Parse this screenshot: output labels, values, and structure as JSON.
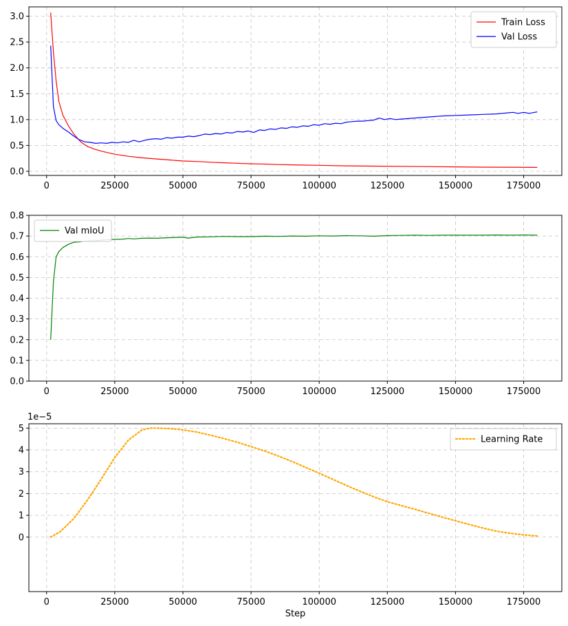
{
  "chart_data": [
    {
      "type": "line",
      "xlim": [
        -6500,
        189000
      ],
      "ylim": [
        -0.08,
        3.18
      ],
      "x_ticks": [
        0,
        25000,
        50000,
        75000,
        100000,
        125000,
        150000,
        175000
      ],
      "x_tick_labels": [
        "0",
        "25000",
        "50000",
        "75000",
        "100000",
        "125000",
        "150000",
        "175000"
      ],
      "y_ticks": [
        0.0,
        0.5,
        1.0,
        1.5,
        2.0,
        2.5,
        3.0
      ],
      "y_tick_labels": [
        "0.0",
        "0.5",
        "1.0",
        "1.5",
        "2.0",
        "2.5",
        "3.0"
      ],
      "grid": true,
      "legend_position": "top-right",
      "series": [
        {
          "name": "Train Loss",
          "color": "#ff0000",
          "style": "solid",
          "x": [
            1500,
            2500,
            3500,
            4500,
            6000,
            8000,
            10000,
            12500,
            15000,
            17500,
            20000,
            25000,
            30000,
            35000,
            40000,
            45000,
            50000,
            55000,
            60000,
            65000,
            70000,
            75000,
            80000,
            85000,
            90000,
            95000,
            100000,
            110000,
            120000,
            130000,
            140000,
            150000,
            160000,
            170000,
            180000
          ],
          "y": [
            3.07,
            2.3,
            1.75,
            1.35,
            1.08,
            0.88,
            0.72,
            0.57,
            0.48,
            0.43,
            0.39,
            0.33,
            0.29,
            0.26,
            0.24,
            0.22,
            0.2,
            0.19,
            0.175,
            0.165,
            0.155,
            0.145,
            0.14,
            0.13,
            0.125,
            0.12,
            0.115,
            0.105,
            0.1,
            0.095,
            0.09,
            0.085,
            0.08,
            0.078,
            0.075
          ]
        },
        {
          "name": "Val Loss",
          "color": "#0000ff",
          "style": "solid",
          "x": [
            1500,
            2500,
            3500,
            4500,
            6000,
            8000,
            10000,
            12000,
            14000,
            16000,
            18000,
            20000,
            22000,
            24000,
            26000,
            28000,
            30000,
            32000,
            34000,
            36000,
            38000,
            40000,
            42000,
            44000,
            46000,
            48000,
            50000,
            52000,
            54000,
            56000,
            58000,
            60000,
            62000,
            64000,
            66000,
            68000,
            70000,
            72000,
            74000,
            76000,
            78000,
            80000,
            82000,
            84000,
            86000,
            88000,
            90000,
            92000,
            94000,
            96000,
            98000,
            100000,
            102000,
            104000,
            106000,
            108000,
            110000,
            112000,
            114000,
            116000,
            118000,
            120000,
            122000,
            124000,
            126000,
            128000,
            130000,
            135000,
            140000,
            145000,
            150000,
            155000,
            160000,
            165000,
            167000,
            169000,
            171000,
            173000,
            175000,
            177000,
            179000,
            180000
          ],
          "y": [
            2.43,
            1.25,
            0.98,
            0.9,
            0.83,
            0.76,
            0.68,
            0.61,
            0.57,
            0.56,
            0.54,
            0.55,
            0.54,
            0.56,
            0.55,
            0.57,
            0.56,
            0.6,
            0.57,
            0.6,
            0.62,
            0.63,
            0.62,
            0.65,
            0.64,
            0.66,
            0.66,
            0.68,
            0.67,
            0.69,
            0.72,
            0.71,
            0.73,
            0.72,
            0.75,
            0.74,
            0.77,
            0.76,
            0.78,
            0.75,
            0.8,
            0.79,
            0.82,
            0.81,
            0.84,
            0.83,
            0.86,
            0.85,
            0.88,
            0.87,
            0.9,
            0.89,
            0.92,
            0.91,
            0.93,
            0.92,
            0.95,
            0.96,
            0.97,
            0.97,
            0.98,
            0.99,
            1.03,
            1.0,
            1.02,
            1.0,
            1.01,
            1.03,
            1.05,
            1.07,
            1.08,
            1.09,
            1.1,
            1.11,
            1.12,
            1.13,
            1.14,
            1.12,
            1.14,
            1.12,
            1.14,
            1.15
          ]
        }
      ]
    },
    {
      "type": "line",
      "xlim": [
        -6500,
        189000
      ],
      "ylim": [
        0.0,
        0.8
      ],
      "x_ticks": [
        0,
        25000,
        50000,
        75000,
        100000,
        125000,
        150000,
        175000
      ],
      "x_tick_labels": [
        "0",
        "25000",
        "50000",
        "75000",
        "100000",
        "125000",
        "150000",
        "175000"
      ],
      "y_ticks": [
        0.0,
        0.1,
        0.2,
        0.3,
        0.4,
        0.5,
        0.6,
        0.7,
        0.8
      ],
      "y_tick_labels": [
        "0.0",
        "0.1",
        "0.2",
        "0.3",
        "0.4",
        "0.5",
        "0.6",
        "0.7",
        "0.8"
      ],
      "grid": true,
      "legend_position": "top-left",
      "series": [
        {
          "name": "Val mIoU",
          "color": "#008000",
          "style": "solid",
          "x": [
            1500,
            2500,
            3500,
            4500,
            6000,
            8000,
            10000,
            12000,
            14000,
            16000,
            18000,
            20000,
            22000,
            25000,
            28000,
            30000,
            32000,
            35000,
            38000,
            40000,
            45000,
            50000,
            52000,
            55000,
            60000,
            65000,
            70000,
            75000,
            80000,
            85000,
            90000,
            95000,
            100000,
            105000,
            110000,
            115000,
            120000,
            125000,
            130000,
            135000,
            140000,
            145000,
            150000,
            155000,
            160000,
            165000,
            170000,
            175000,
            180000
          ],
          "y": [
            0.2,
            0.48,
            0.6,
            0.625,
            0.645,
            0.66,
            0.67,
            0.672,
            0.675,
            0.677,
            0.678,
            0.68,
            0.682,
            0.684,
            0.685,
            0.688,
            0.686,
            0.689,
            0.69,
            0.689,
            0.692,
            0.694,
            0.69,
            0.695,
            0.696,
            0.698,
            0.697,
            0.697,
            0.699,
            0.698,
            0.7,
            0.699,
            0.701,
            0.7,
            0.702,
            0.701,
            0.699,
            0.702,
            0.703,
            0.704,
            0.703,
            0.704,
            0.704,
            0.704,
            0.704,
            0.705,
            0.704,
            0.705,
            0.704
          ]
        }
      ]
    },
    {
      "type": "line",
      "xlim": [
        -6500,
        189000
      ],
      "ylim": [
        -2.5e-05,
        5.2e-05
      ],
      "x_ticks": [
        0,
        25000,
        50000,
        75000,
        100000,
        125000,
        150000,
        175000
      ],
      "x_tick_labels": [
        "0",
        "25000",
        "50000",
        "75000",
        "100000",
        "125000",
        "150000",
        "175000"
      ],
      "y_ticks": [
        0,
        1e-05,
        2e-05,
        3e-05,
        4e-05,
        5e-05
      ],
      "y_tick_labels": [
        "0",
        "1",
        "2",
        "3",
        "4",
        "5"
      ],
      "y_offset_text": "1e−5",
      "xlabel": "Step",
      "grid": true,
      "legend_position": "top-right",
      "series": [
        {
          "name": "Learning Rate",
          "color": "#ffa500",
          "style": "dotted",
          "x": [
            1500,
            5000,
            10000,
            15000,
            20000,
            25000,
            30000,
            35000,
            38000,
            40000,
            45000,
            50000,
            55000,
            60000,
            65000,
            70000,
            75000,
            80000,
            85000,
            90000,
            95000,
            100000,
            105000,
            110000,
            115000,
            120000,
            125000,
            130000,
            135000,
            140000,
            145000,
            150000,
            155000,
            160000,
            165000,
            170000,
            175000,
            180000
          ],
          "y": [
            0.0,
            2.5e-06,
            8.5e-06,
            1.7e-05,
            2.65e-05,
            3.65e-05,
            4.45e-05,
            4.92e-05,
            5e-05,
            5e-05,
            4.98e-05,
            4.92e-05,
            4.82e-05,
            4.68e-05,
            4.52e-05,
            4.35e-05,
            4.15e-05,
            3.95e-05,
            3.72e-05,
            3.47e-05,
            3.2e-05,
            2.93e-05,
            2.65e-05,
            2.37e-05,
            2.1e-05,
            1.85e-05,
            1.62e-05,
            1.45e-05,
            1.28e-05,
            1.1e-05,
            9.2e-06,
            7.5e-06,
            5.8e-06,
            4.2e-06,
            2.7e-06,
            1.8e-06,
            1e-06,
            5e-07
          ]
        }
      ]
    }
  ]
}
